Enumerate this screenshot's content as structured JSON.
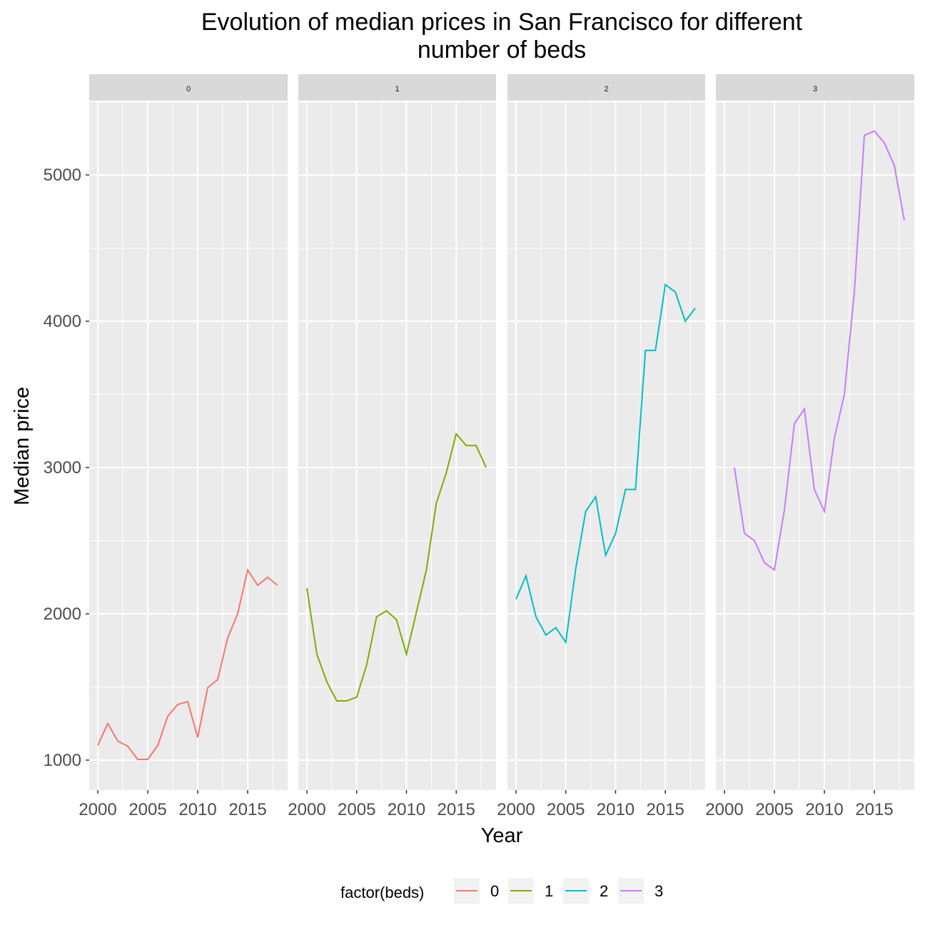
{
  "chart_data": {
    "type": "line",
    "title": "Evolution of median prices in San Francisco for different number of beds",
    "title_lines": [
      "Evolution of median prices in San Francisco for different",
      "number of beds"
    ],
    "xlabel": "Year",
    "ylabel": "Median price",
    "xlim": [
      1999.14,
      2019.0
    ],
    "ylim": [
      795,
      5498
    ],
    "x_ticks": [
      2000,
      2005,
      2010,
      2015
    ],
    "y_ticks": [
      1000,
      2000,
      3000,
      4000,
      5000
    ],
    "grid": true,
    "facet_by": "beds",
    "legend": {
      "title": "factor(beds)",
      "placement": "bottom",
      "entries": [
        "0",
        "1",
        "2",
        "3"
      ]
    },
    "colors": [
      "#F8766D",
      "#7CAE00",
      "#00BFC4",
      "#C77CFF"
    ],
    "series": [
      {
        "name": "0",
        "x": [
          2000,
          2001,
          2002,
          2003,
          2004,
          2005,
          2006,
          2007,
          2008,
          2009,
          2010,
          2011,
          2012,
          2013,
          2014,
          2015,
          2016,
          2017,
          2018
        ],
        "values": [
          1100,
          1250,
          1130,
          1095,
          1005,
          1005,
          1100,
          1300,
          1380,
          1400,
          1155,
          1495,
          1550,
          1835,
          2000,
          2300,
          2195,
          2250,
          2195
        ]
      },
      {
        "name": "1",
        "x": [
          2000,
          2001,
          2002,
          2003,
          2004,
          2005,
          2006,
          2007,
          2008,
          2009,
          2010,
          2011,
          2012,
          2013,
          2014,
          2015,
          2016,
          2017,
          2018
        ],
        "values": [
          2175,
          1725,
          1535,
          1405,
          1405,
          1430,
          1650,
          1980,
          2020,
          1960,
          1725,
          2010,
          2300,
          2755,
          2965,
          3230,
          3150,
          3150,
          3000
        ]
      },
      {
        "name": "2",
        "x": [
          2000,
          2001,
          2002,
          2003,
          2004,
          2005,
          2006,
          2007,
          2008,
          2009,
          2010,
          2011,
          2012,
          2013,
          2014,
          2015,
          2016,
          2017,
          2018
        ],
        "values": [
          2100,
          2260,
          1980,
          1855,
          1905,
          1805,
          2310,
          2700,
          2800,
          2400,
          2550,
          2850,
          2850,
          3800,
          3800,
          4250,
          4200,
          4000,
          4090
        ]
      },
      {
        "name": "3",
        "x": [
          2001,
          2002,
          2003,
          2004,
          2005,
          2006,
          2007,
          2008,
          2009,
          2010,
          2011,
          2012,
          2013,
          2014,
          2015,
          2016,
          2017,
          2018
        ],
        "values": [
          3000,
          2550,
          2500,
          2350,
          2300,
          2710,
          3300,
          3400,
          2850,
          2700,
          3200,
          3500,
          4200,
          5270,
          5300,
          5220,
          5065,
          4690
        ]
      }
    ]
  }
}
